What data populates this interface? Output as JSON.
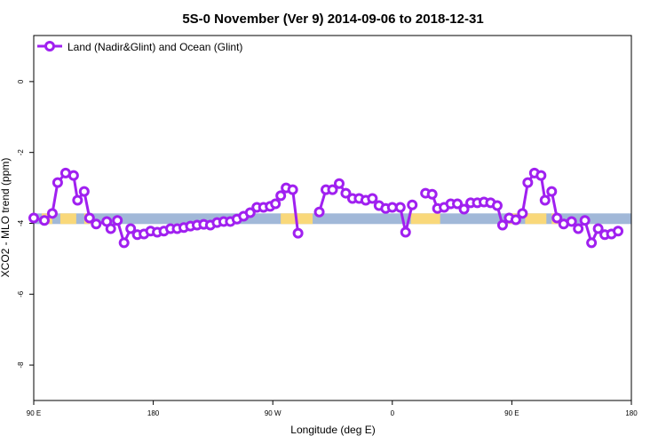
{
  "chart_data": {
    "type": "line",
    "title": "5S-0 November (Ver 9)   2014-09-06 to 2018-12-31",
    "xlabel": "Longitude (deg E)",
    "ylabel": "XCO2 - MLO trend (ppm)",
    "xlim": [
      90,
      540
    ],
    "ylim": [
      -9.0,
      1.3
    ],
    "x_ticks": [
      {
        "value": 90,
        "label": "90 E"
      },
      {
        "value": 180,
        "label": "180"
      },
      {
        "value": 270,
        "label": "90 W"
      },
      {
        "value": 360,
        "label": "0"
      },
      {
        "value": 450,
        "label": "90 E"
      },
      {
        "value": 540,
        "label": "180"
      }
    ],
    "y_ticks": [
      {
        "value": 0,
        "label": "0"
      },
      {
        "value": -2,
        "label": "-2"
      },
      {
        "value": -4,
        "label": "-4"
      },
      {
        "value": -6,
        "label": "-6"
      },
      {
        "value": -8,
        "label": "-8"
      }
    ],
    "grid": false,
    "legend_position": "top-left",
    "series": [
      {
        "name": "Land (Nadir&Glint) and Ocean (Glint)",
        "color": "#a020f0",
        "segments": [
          [
            [
              90,
              -3.85
            ],
            [
              98,
              -3.92
            ],
            [
              104,
              -3.72
            ],
            [
              108,
              -2.85
            ],
            [
              114,
              -2.58
            ],
            [
              120,
              -2.65
            ],
            [
              123,
              -3.35
            ],
            [
              128,
              -3.1
            ],
            [
              132,
              -3.85
            ],
            [
              137,
              -4.02
            ],
            [
              145,
              -3.95
            ],
            [
              148,
              -4.15
            ],
            [
              153,
              -3.92
            ],
            [
              158,
              -4.55
            ],
            [
              163,
              -4.15
            ],
            [
              168,
              -4.32
            ],
            [
              173,
              -4.3
            ],
            [
              178,
              -4.22
            ],
            [
              183,
              -4.25
            ],
            [
              188,
              -4.22
            ],
            [
              193,
              -4.15
            ],
            [
              198,
              -4.15
            ],
            [
              203,
              -4.12
            ],
            [
              208,
              -4.08
            ],
            [
              213,
              -4.05
            ],
            [
              218,
              -4.03
            ],
            [
              223,
              -4.05
            ],
            [
              228,
              -3.98
            ],
            [
              233,
              -3.95
            ],
            [
              238,
              -3.95
            ],
            [
              243,
              -3.88
            ],
            [
              248,
              -3.8
            ],
            [
              253,
              -3.7
            ],
            [
              258,
              -3.55
            ],
            [
              263,
              -3.55
            ],
            [
              268,
              -3.52
            ],
            [
              272,
              -3.45
            ],
            [
              276,
              -3.22
            ],
            [
              280,
              -3.0
            ],
            [
              285,
              -3.05
            ],
            [
              289,
              -4.28
            ]
          ],
          [
            [
              305,
              -3.68
            ],
            [
              310,
              -3.05
            ],
            [
              315,
              -3.05
            ],
            [
              320,
              -2.88
            ],
            [
              325,
              -3.15
            ],
            [
              330,
              -3.3
            ],
            [
              335,
              -3.3
            ],
            [
              340,
              -3.35
            ],
            [
              345,
              -3.3
            ],
            [
              350,
              -3.5
            ],
            [
              355,
              -3.58
            ],
            [
              360,
              -3.55
            ],
            [
              366,
              -3.55
            ],
            [
              370,
              -4.25
            ],
            [
              375,
              -3.48
            ]
          ],
          [
            [
              385,
              -3.15
            ],
            [
              390,
              -3.18
            ],
            [
              394,
              -3.58
            ],
            [
              399,
              -3.55
            ],
            [
              404,
              -3.45
            ],
            [
              409,
              -3.45
            ],
            [
              414,
              -3.6
            ],
            [
              419,
              -3.42
            ],
            [
              424,
              -3.42
            ],
            [
              429,
              -3.4
            ],
            [
              434,
              -3.42
            ],
            [
              439,
              -3.5
            ],
            [
              443,
              -4.05
            ],
            [
              448,
              -3.85
            ],
            [
              453,
              -3.9
            ],
            [
              458,
              -3.72
            ],
            [
              462,
              -2.85
            ],
            [
              467,
              -2.58
            ],
            [
              472,
              -2.65
            ],
            [
              475,
              -3.35
            ],
            [
              480,
              -3.1
            ],
            [
              484,
              -3.85
            ],
            [
              489,
              -4.02
            ],
            [
              495,
              -3.95
            ],
            [
              500,
              -4.15
            ],
            [
              505,
              -3.92
            ],
            [
              510,
              -4.55
            ],
            [
              515,
              -4.15
            ],
            [
              520,
              -4.32
            ],
            [
              525,
              -4.3
            ],
            [
              530,
              -4.22
            ]
          ]
        ]
      }
    ],
    "background_band": {
      "y_range": [
        -3.72,
        -4.02
      ],
      "ocean_color": "#a1b8d8",
      "land_color": "#f9d87a",
      "land_x_ranges": [
        [
          96,
          104
        ],
        [
          110,
          122
        ],
        [
          128,
          134
        ],
        [
          276,
          300
        ],
        [
          374,
          396
        ],
        [
          447,
          456
        ],
        [
          460,
          476
        ],
        [
          480,
          486
        ]
      ]
    }
  }
}
